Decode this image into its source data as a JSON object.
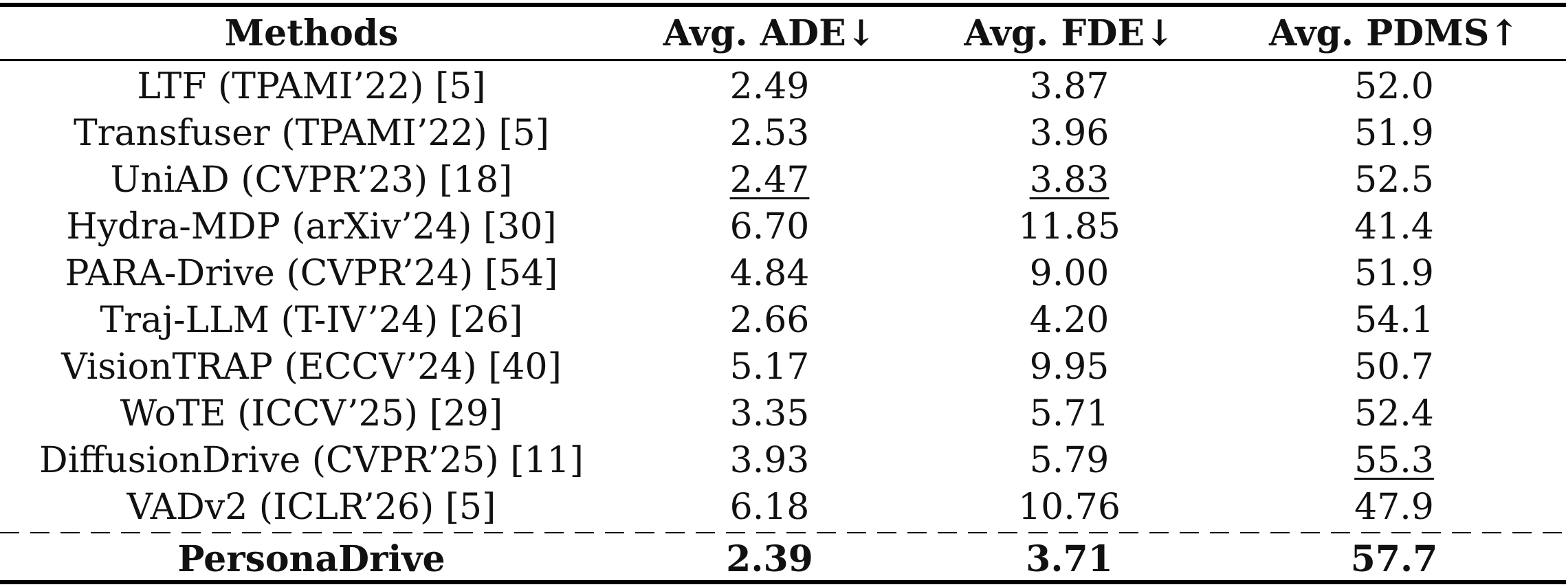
{
  "table": {
    "headers": [
      "Methods",
      "Avg. ADE↓",
      "Avg. FDE↓",
      "Avg. PDMS↑"
    ],
    "rows": [
      {
        "method": "LTF (TPAMI’22) [5]",
        "ade": "2.49",
        "fde": "3.87",
        "pdms": "52.0"
      },
      {
        "method": "Transfuser (TPAMI’22) [5]",
        "ade": "2.53",
        "fde": "3.96",
        "pdms": "51.9"
      },
      {
        "method": "UniAD (CVPR’23) [18]",
        "ade": "2.47",
        "fde": "3.83",
        "pdms": "52.5"
      },
      {
        "method": "Hydra-MDP (arXiv’24) [30]",
        "ade": "6.70",
        "fde": "11.85",
        "pdms": "41.4"
      },
      {
        "method": "PARA-Drive (CVPR’24) [54]",
        "ade": "4.84",
        "fde": "9.00",
        "pdms": "51.9"
      },
      {
        "method": "Traj-LLM (T-IV’24) [26]",
        "ade": "2.66",
        "fde": "4.20",
        "pdms": "54.1"
      },
      {
        "method": "VisionTRAP (ECCV’24) [40]",
        "ade": "5.17",
        "fde": "9.95",
        "pdms": "50.7"
      },
      {
        "method": "WoTE (ICCV’25) [29]",
        "ade": "3.35",
        "fde": "5.71",
        "pdms": "52.4"
      },
      {
        "method": "DiffusionDrive (CVPR’25) [11]",
        "ade": "3.93",
        "fde": "5.79",
        "pdms": "55.3"
      },
      {
        "method": "VADv2 (ICLR’26) [5]",
        "ade": "6.18",
        "fde": "10.76",
        "pdms": "47.9"
      }
    ],
    "ours": {
      "method": "PersonaDrive",
      "ade": "2.39",
      "fde": "3.71",
      "pdms": "57.7"
    }
  }
}
